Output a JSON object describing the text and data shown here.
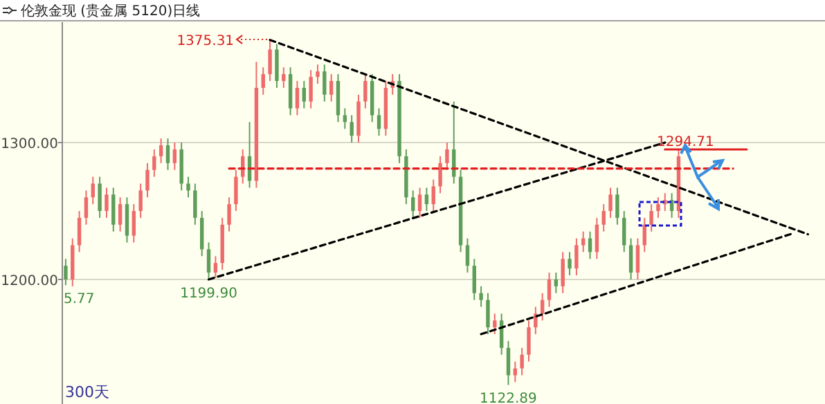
{
  "chart_data": {
    "type": "candlestick",
    "title": "伦敦金现 (贵金属 5120)日线",
    "categories": [
      null,
      null,
      null,
      null,
      null,
      null,
      null,
      null,
      null,
      null,
      null,
      null,
      null,
      null,
      null,
      null,
      null,
      null,
      null,
      null,
      null,
      null,
      null,
      null,
      null,
      null,
      null,
      null,
      null,
      null,
      null,
      null,
      null,
      null,
      null,
      null,
      null,
      null,
      null,
      null,
      null,
      null,
      null,
      null,
      null,
      null,
      null,
      null,
      null,
      null,
      null,
      null,
      null,
      null,
      null,
      null,
      null,
      null,
      null,
      null,
      null,
      null,
      null,
      null,
      null,
      null,
      null,
      null,
      null,
      null,
      null,
      null,
      null,
      null,
      null,
      null,
      null,
      null,
      null,
      null,
      null,
      null,
      null,
      null,
      null,
      null,
      null,
      null,
      null,
      null,
      null,
      null,
      null,
      null,
      null,
      null,
      null,
      null,
      null,
      null,
      null,
      null,
      null,
      null,
      null,
      null,
      null,
      null,
      null,
      null,
      null,
      null
    ],
    "ohlc": [
      [
        1210,
        1215,
        1195.77,
        1200
      ],
      [
        1200,
        1230,
        1195,
        1225
      ],
      [
        1225,
        1250,
        1220,
        1245
      ],
      [
        1245,
        1265,
        1240,
        1260
      ],
      [
        1260,
        1275,
        1255,
        1270
      ],
      [
        1270,
        1275,
        1245,
        1250
      ],
      [
        1250,
        1267,
        1245,
        1262
      ],
      [
        1262,
        1267,
        1235,
        1240
      ],
      [
        1240,
        1260,
        1235,
        1255
      ],
      [
        1255,
        1260,
        1227,
        1232
      ],
      [
        1232,
        1255,
        1227,
        1250
      ],
      [
        1250,
        1270,
        1245,
        1265
      ],
      [
        1265,
        1285,
        1260,
        1280
      ],
      [
        1280,
        1295,
        1275,
        1290
      ],
      [
        1290,
        1303,
        1285,
        1298
      ],
      [
        1298,
        1303,
        1280,
        1285
      ],
      [
        1285,
        1300,
        1280,
        1295
      ],
      [
        1295,
        1300,
        1265,
        1270
      ],
      [
        1270,
        1275,
        1260,
        1265
      ],
      [
        1265,
        1270,
        1240,
        1245
      ],
      [
        1245,
        1250,
        1217,
        1222
      ],
      [
        1222,
        1227,
        1199.9,
        1205
      ],
      [
        1205,
        1217,
        1201,
        1212
      ],
      [
        1212,
        1245,
        1207,
        1240
      ],
      [
        1240,
        1260,
        1235,
        1255
      ],
      [
        1255,
        1280,
        1250,
        1275
      ],
      [
        1275,
        1295,
        1270,
        1290
      ],
      [
        1290,
        1315,
        1267,
        1272
      ],
      [
        1272,
        1359,
        1267,
        1340
      ],
      [
        1340,
        1355,
        1335,
        1350
      ],
      [
        1350,
        1375.31,
        1345,
        1368
      ],
      [
        1368,
        1372,
        1340,
        1345
      ],
      [
        1345,
        1355,
        1340,
        1350
      ],
      [
        1350,
        1355,
        1320,
        1325
      ],
      [
        1325,
        1345,
        1320,
        1340
      ],
      [
        1340,
        1345,
        1325,
        1330
      ],
      [
        1330,
        1353,
        1325,
        1348
      ],
      [
        1348,
        1357,
        1343,
        1352
      ],
      [
        1352,
        1357,
        1330,
        1335
      ],
      [
        1335,
        1350,
        1330,
        1345
      ],
      [
        1345,
        1350,
        1315,
        1320
      ],
      [
        1320,
        1325,
        1310,
        1315
      ],
      [
        1315,
        1320,
        1300,
        1305
      ],
      [
        1305,
        1335,
        1300,
        1330
      ],
      [
        1330,
        1350,
        1325,
        1345
      ],
      [
        1345,
        1350,
        1315,
        1320
      ],
      [
        1320,
        1325,
        1305,
        1310
      ],
      [
        1310,
        1345,
        1305,
        1340
      ],
      [
        1340,
        1350,
        1335,
        1345
      ],
      [
        1345,
        1350,
        1285,
        1290
      ],
      [
        1290,
        1295,
        1255,
        1260
      ],
      [
        1260,
        1265,
        1245,
        1250
      ],
      [
        1250,
        1267,
        1245,
        1262
      ],
      [
        1262,
        1267,
        1250,
        1255
      ],
      [
        1255,
        1273,
        1250,
        1268
      ],
      [
        1268,
        1290,
        1263,
        1285
      ],
      [
        1285,
        1300,
        1280,
        1295
      ],
      [
        1295,
        1330,
        1270,
        1275
      ],
      [
        1275,
        1280,
        1220,
        1225
      ],
      [
        1225,
        1230,
        1205,
        1210
      ],
      [
        1210,
        1215,
        1185,
        1190
      ],
      [
        1190,
        1195,
        1180,
        1185
      ],
      [
        1185,
        1190,
        1160,
        1165
      ],
      [
        1165,
        1175,
        1160,
        1170
      ],
      [
        1170,
        1175,
        1145,
        1150
      ],
      [
        1150,
        1155,
        1122.89,
        1130
      ],
      [
        1130,
        1140,
        1125,
        1135
      ],
      [
        1135,
        1150,
        1130,
        1145
      ],
      [
        1145,
        1170,
        1140,
        1165
      ],
      [
        1165,
        1180,
        1160,
        1175
      ],
      [
        1175,
        1190,
        1170,
        1185
      ],
      [
        1185,
        1205,
        1180,
        1200
      ],
      [
        1200,
        1205,
        1190,
        1195
      ],
      [
        1195,
        1220,
        1190,
        1215
      ],
      [
        1215,
        1220,
        1203,
        1208
      ],
      [
        1208,
        1230,
        1203,
        1225
      ],
      [
        1225,
        1235,
        1220,
        1230
      ],
      [
        1230,
        1235,
        1215,
        1220
      ],
      [
        1220,
        1245,
        1215,
        1240
      ],
      [
        1240,
        1255,
        1235,
        1250
      ],
      [
        1250,
        1267,
        1245,
        1262
      ],
      [
        1262,
        1267,
        1240,
        1245
      ],
      [
        1245,
        1250,
        1220,
        1225
      ],
      [
        1225,
        1230,
        1200,
        1205
      ],
      [
        1205,
        1230,
        1200,
        1225
      ],
      [
        1225,
        1245,
        1220,
        1240
      ],
      [
        1240,
        1255,
        1235,
        1250
      ],
      [
        1250,
        1260,
        1245,
        1255
      ],
      [
        1255,
        1263,
        1250,
        1258
      ],
      [
        1258,
        1263,
        1245,
        1250
      ],
      [
        1250,
        1294.71,
        1245,
        1290
      ],
      null,
      null,
      null,
      null,
      null,
      null,
      null,
      null,
      null,
      null,
      null,
      null,
      null,
      null,
      null,
      null,
      null,
      null,
      null,
      null,
      null
    ],
    "colors": [
      "#5e9e5a",
      "#ee6b6b",
      "#ee6b6b",
      "#ee6b6b",
      "#ee6b6b",
      "#5e9e5a",
      "#ee6b6b",
      "#5e9e5a",
      "#ee6b6b",
      "#5e9e5a",
      "#ee6b6b",
      "#ee6b6b",
      "#ee6b6b",
      "#ee6b6b",
      "#ee6b6b",
      "#5e9e5a",
      "#ee6b6b",
      "#5e9e5a",
      "#5e9e5a",
      "#5e9e5a",
      "#5e9e5a",
      "#5e9e5a",
      "#ee6b6b",
      "#ee6b6b",
      "#ee6b6b",
      "#ee6b6b",
      "#ee6b6b",
      "#5e9e5a",
      "#ee6b6b",
      "#ee6b6b",
      "#ee6b6b",
      "#5e9e5a",
      "#ee6b6b",
      "#5e9e5a",
      "#ee6b6b",
      "#5e9e5a",
      "#ee6b6b",
      "#ee6b6b",
      "#5e9e5a",
      "#ee6b6b",
      "#5e9e5a",
      "#5e9e5a",
      "#5e9e5a",
      "#ee6b6b",
      "#ee6b6b",
      "#5e9e5a",
      "#5e9e5a",
      "#ee6b6b",
      "#ee6b6b",
      "#5e9e5a",
      "#5e9e5a",
      "#5e9e5a",
      "#ee6b6b",
      "#5e9e5a",
      "#ee6b6b",
      "#ee6b6b",
      "#ee6b6b",
      "#5e9e5a",
      "#5e9e5a",
      "#5e9e5a",
      "#5e9e5a",
      "#5e9e5a",
      "#5e9e5a",
      "#ee6b6b",
      "#5e9e5a",
      "#5e9e5a",
      "#ee6b6b",
      "#ee6b6b",
      "#ee6b6b",
      "#ee6b6b",
      "#ee6b6b",
      "#ee6b6b",
      "#5e9e5a",
      "#ee6b6b",
      "#5e9e5a",
      "#ee6b6b",
      "#ee6b6b",
      "#5e9e5a",
      "#ee6b6b",
      "#ee6b6b",
      "#ee6b6b",
      "#5e9e5a",
      "#5e9e5a",
      "#5e9e5a",
      "#ee6b6b",
      "#ee6b6b",
      "#ee6b6b",
      "#ee6b6b",
      "#ee6b6b",
      "#5e9e5a",
      "#ee6b6b",
      null,
      null,
      null,
      null,
      null,
      null,
      null,
      null,
      null,
      null,
      null,
      null,
      null,
      null,
      null,
      null,
      null,
      null,
      null,
      null,
      null
    ],
    "series": [
      {
        "type": "line",
        "values": [
          null,
          null,
          null,
          null,
          null,
          null,
          null,
          null,
          null,
          null,
          null,
          null,
          null,
          null,
          null,
          null,
          null,
          null,
          null,
          null,
          null,
          null,
          null,
          null,
          null,
          null,
          null,
          null,
          null,
          null,
          1375,
          null,
          null,
          null,
          null,
          null,
          null,
          null,
          null,
          null,
          null,
          null,
          null,
          null,
          null,
          null,
          null,
          null,
          null,
          null,
          null,
          null,
          null,
          null,
          null,
          null,
          null,
          null,
          null,
          null,
          null,
          null,
          null,
          null,
          null,
          null,
          null,
          null,
          null,
          null,
          null,
          null,
          null,
          null,
          null,
          null,
          null,
          null,
          null,
          null,
          null,
          null,
          null,
          null,
          null,
          null,
          null,
          null,
          null,
          null,
          null,
          null,
          null,
          null,
          null,
          null,
          null,
          null,
          null,
          null,
          null,
          null,
          null,
          null,
          null,
          null,
          null,
          null,
          null,
          1233,
          null,
          null
        ],
        "color": "#000000",
        "line_style": "dashed"
      },
      {
        "type": "line",
        "values": [
          null,
          null,
          null,
          null,
          null,
          null,
          null,
          null,
          null,
          null,
          null,
          null,
          null,
          null,
          null,
          null,
          null,
          null,
          null,
          null,
          null,
          1200,
          null,
          null,
          null,
          null,
          null,
          null,
          null,
          null,
          null,
          null,
          null,
          null,
          null,
          null,
          null,
          null,
          null,
          null,
          null,
          null,
          null,
          null,
          null,
          null,
          null,
          null,
          null,
          null,
          null,
          null,
          null,
          null,
          null,
          null,
          null,
          null,
          null,
          null,
          null,
          null,
          null,
          null,
          null,
          null,
          null,
          null,
          null,
          null,
          null,
          null,
          null,
          null,
          null,
          null,
          null,
          null,
          null,
          null,
          null,
          null,
          null,
          null,
          null,
          null,
          null,
          null,
          1300,
          null,
          null,
          null,
          null,
          null,
          null,
          null,
          null,
          null,
          null,
          null,
          null,
          null,
          null,
          null,
          null,
          null,
          null,
          null,
          null,
          null,
          null,
          null
        ],
        "color": "#000000",
        "line_style": "dashed"
      },
      {
        "type": "line",
        "values": [
          null,
          null,
          null,
          null,
          null,
          null,
          null,
          null,
          null,
          null,
          null,
          null,
          null,
          null,
          null,
          null,
          null,
          null,
          null,
          null,
          null,
          null,
          null,
          null,
          null,
          null,
          null,
          null,
          null,
          null,
          null,
          null,
          null,
          null,
          null,
          null,
          null,
          null,
          null,
          null,
          null,
          null,
          null,
          null,
          null,
          null,
          null,
          null,
          null,
          null,
          null,
          null,
          null,
          null,
          null,
          null,
          null,
          null,
          null,
          null,
          null,
          1160,
          null,
          null,
          null,
          null,
          null,
          null,
          null,
          null,
          null,
          null,
          null,
          null,
          null,
          null,
          null,
          null,
          null,
          null,
          null,
          null,
          null,
          null,
          null,
          null,
          null,
          null,
          null,
          null,
          null,
          null,
          null,
          null,
          null,
          null,
          null,
          null,
          null,
          null,
          null,
          null,
          null,
          null,
          null,
          null,
          null,
          1234,
          null,
          null,
          null,
          null
        ],
        "color": "#000000",
        "line_style": "dashed"
      },
      {
        "type": "line",
        "values": [
          null,
          null,
          null,
          null,
          null,
          null,
          null,
          null,
          null,
          null,
          null,
          null,
          null,
          null,
          null,
          null,
          null,
          null,
          null,
          null,
          null,
          null,
          null,
          null,
          1281,
          null,
          null,
          null,
          null,
          null,
          null,
          null,
          null,
          null,
          null,
          null,
          null,
          null,
          null,
          null,
          null,
          null,
          null,
          null,
          null,
          null,
          null,
          null,
          null,
          null,
          null,
          null,
          null,
          null,
          null,
          null,
          null,
          null,
          null,
          null,
          null,
          null,
          null,
          null,
          null,
          null,
          null,
          null,
          null,
          null,
          null,
          null,
          null,
          null,
          null,
          null,
          null,
          null,
          null,
          null,
          null,
          null,
          null,
          null,
          null,
          null,
          null,
          null,
          null,
          null,
          null,
          null,
          null,
          null,
          null,
          null,
          null,
          null,
          1281,
          null,
          null,
          null,
          null,
          null,
          null,
          null,
          null,
          null,
          null,
          null,
          null,
          null
        ],
        "color": "#e02020",
        "line_style": "dashed"
      },
      {
        "type": "line",
        "values": [
          null,
          null,
          null,
          null,
          null,
          null,
          null,
          null,
          null,
          null,
          null,
          null,
          null,
          null,
          null,
          null,
          null,
          null,
          null,
          null,
          null,
          null,
          null,
          null,
          null,
          null,
          null,
          null,
          null,
          null,
          null,
          null,
          null,
          null,
          null,
          null,
          null,
          null,
          null,
          null,
          null,
          null,
          null,
          null,
          null,
          null,
          null,
          null,
          null,
          null,
          null,
          null,
          null,
          null,
          null,
          null,
          null,
          null,
          null,
          null,
          null,
          null,
          null,
          null,
          null,
          null,
          null,
          null,
          null,
          null,
          null,
          null,
          null,
          null,
          null,
          null,
          null,
          null,
          null,
          null,
          null,
          null,
          null,
          null,
          null,
          null,
          null,
          null,
          1295,
          null,
          null,
          null,
          null,
          null,
          null,
          null,
          null,
          null,
          null,
          null,
          1295,
          null,
          null,
          null,
          null,
          null,
          null,
          null,
          null,
          null,
          null,
          null
        ],
        "color": "#e02020",
        "line_style": "solid"
      }
    ],
    "ylim": [
      1111,
      1388
    ],
    "yticks": [
      {
        "value": 1300,
        "label": "1300.00"
      },
      {
        "value": 1200,
        "label": "1200.00"
      }
    ],
    "tick_labels": "y",
    "grid": "y",
    "annotations": [
      "1375.31",
      {
        "text": "1294.71",
        "y": 1294.71
      },
      {
        "text": "1199.90",
        "y": 1199.9
      },
      {
        "text": "1122.89",
        "y": 1122.89
      },
      {
        "text": "5.77",
        "y": 1195.77
      },
      "300天"
    ]
  }
}
